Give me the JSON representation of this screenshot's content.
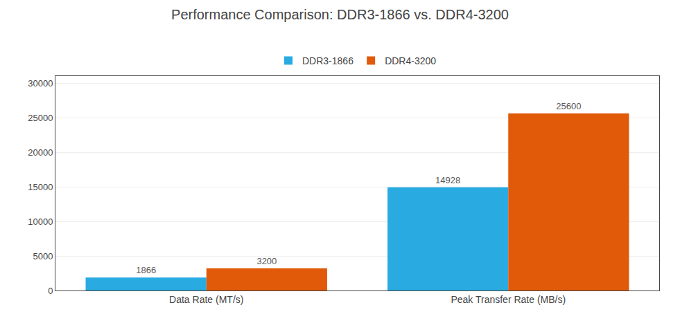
{
  "chart_data": {
    "type": "bar",
    "title": "Performance Comparison: DDR3-1866 vs. DDR4-3200",
    "categories": [
      "Data Rate (MT/s)",
      "Peak Transfer Rate (MB/s)"
    ],
    "series": [
      {
        "name": "DDR3-1866",
        "color": "#29ABE2",
        "values": [
          1866,
          14928
        ]
      },
      {
        "name": "DDR4-3200",
        "color": "#E05A0A",
        "values": [
          3200,
          25600
        ]
      }
    ],
    "ylim": [
      0,
      31000
    ],
    "yticks": [
      0,
      5000,
      10000,
      15000,
      20000,
      25000,
      30000
    ],
    "grid": true,
    "legend": "top",
    "data_labels": true
  }
}
